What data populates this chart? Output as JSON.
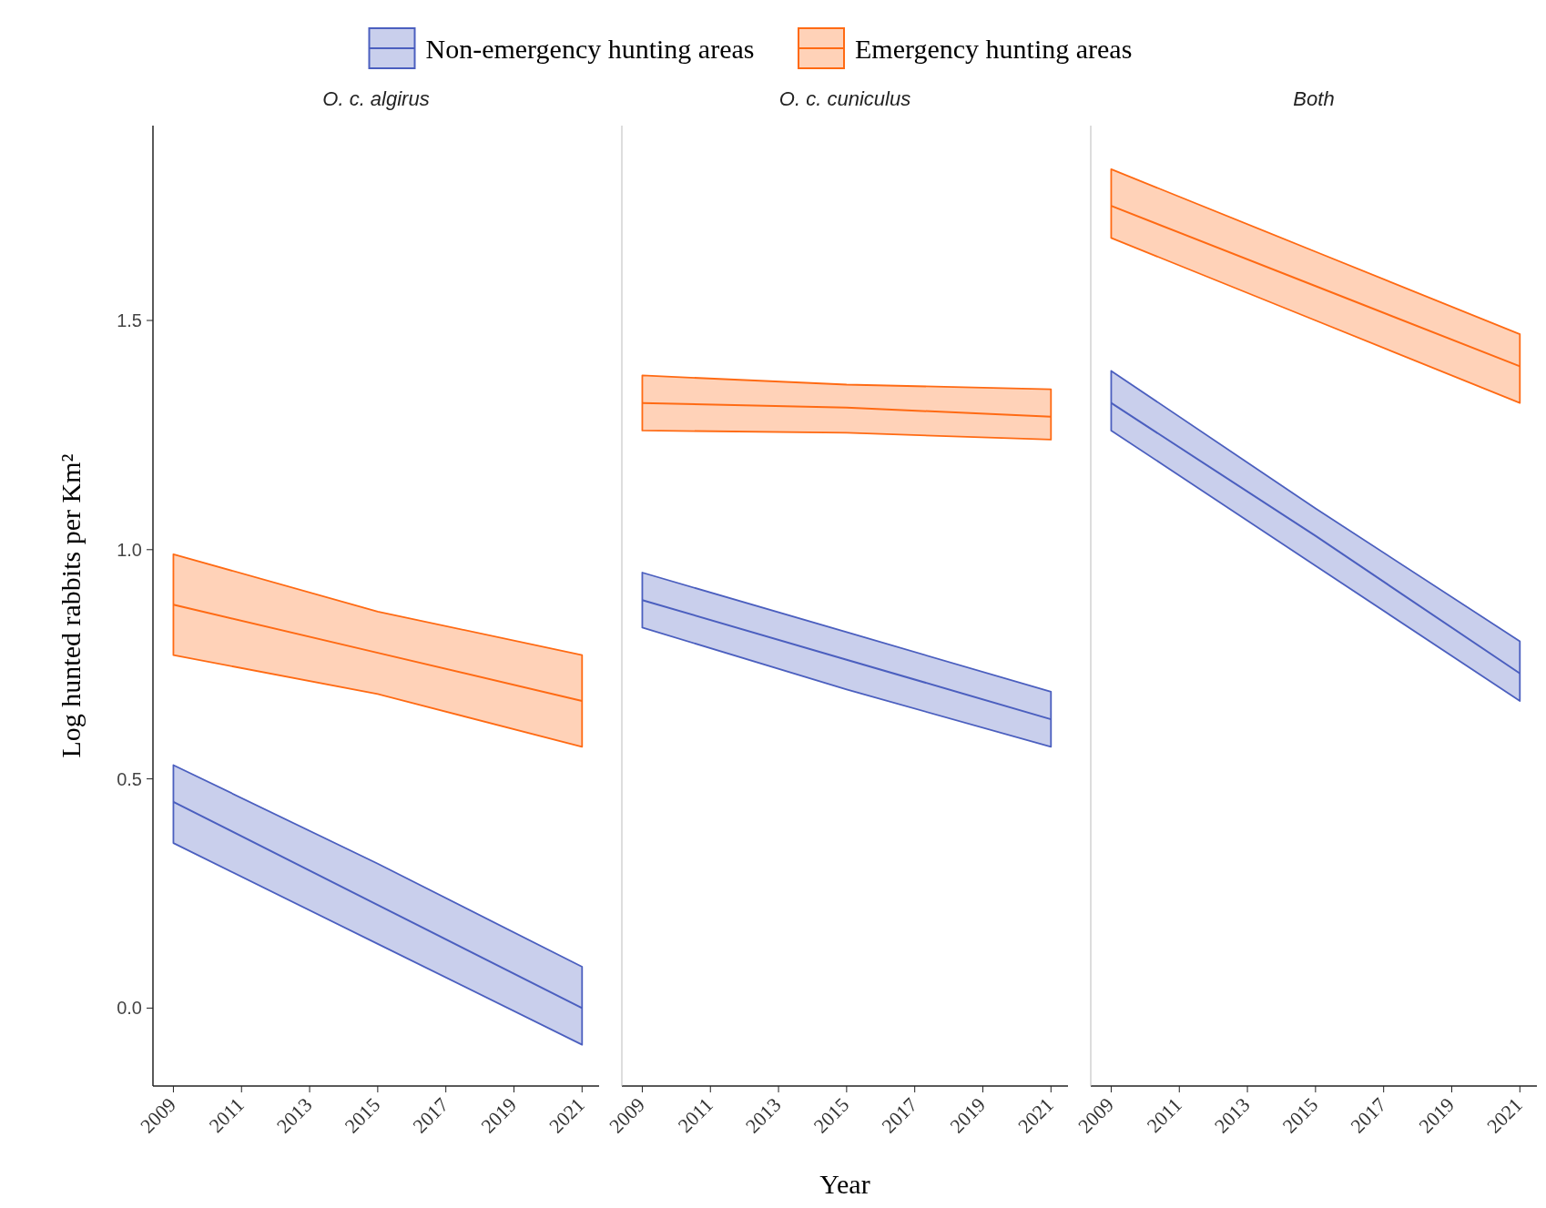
{
  "chart_data": [
    {
      "type": "line",
      "title": "O. c. algirus",
      "ylabel": "Log hunted rabbits per Km²",
      "legend": "top",
      "grid": false,
      "xlim": [
        2008.4,
        2021.5
      ],
      "xticks": [
        2009,
        2011,
        2013,
        2015,
        2017,
        2019,
        2021
      ],
      "ylim": [
        -0.17,
        1.925
      ],
      "yticks": [
        {
          "value": 0,
          "label": "0.0"
        },
        0.5,
        {
          "value": 1,
          "label": "1.0"
        },
        1.5
      ],
      "series": [
        {
          "name": "Non-emergency hunting areas",
          "color": "#4b5fbf",
          "x": [
            2009,
            2015,
            2021
          ],
          "values": [
            0.45,
            0.225,
            0.0
          ],
          "lower": [
            0.36,
            0.14,
            -0.08
          ],
          "upper": [
            0.53,
            0.315,
            0.09
          ]
        },
        {
          "name": "Emergency hunting areas",
          "color": "#ff6a13",
          "x": [
            2009,
            2015,
            2021
          ],
          "values": [
            0.88,
            0.775,
            0.67
          ],
          "lower": [
            0.77,
            0.685,
            0.57
          ],
          "upper": [
            0.99,
            0.865,
            0.77
          ]
        }
      ]
    },
    {
      "type": "line",
      "title": "O. c. cuniculus",
      "xlabel": "Year",
      "tick_labels": "x",
      "xlim": [
        2008.4,
        2021.5
      ],
      "xticks": [
        2009,
        2011,
        2013,
        2015,
        2017,
        2019,
        2021
      ],
      "ylim": [
        -0.17,
        1.925
      ],
      "series": [
        {
          "color": "#4b5fbf",
          "x": [
            2009,
            2015,
            2021
          ],
          "values": [
            0.89,
            0.76,
            0.63
          ],
          "lower": [
            0.83,
            0.695,
            0.57
          ],
          "upper": [
            0.95,
            0.82,
            0.69
          ]
        },
        {
          "color": "#ff6a13",
          "x": [
            2009,
            2015,
            2021
          ],
          "values": [
            1.32,
            1.31,
            1.29
          ],
          "lower": [
            1.26,
            1.255,
            1.24
          ],
          "upper": [
            1.38,
            1.36,
            1.35
          ]
        }
      ]
    },
    {
      "type": "line",
      "title": "Both",
      "tick_labels": "x",
      "xlim": [
        2008.4,
        2021.5
      ],
      "xticks": [
        2009,
        2011,
        2013,
        2015,
        2017,
        2019,
        2021
      ],
      "ylim": [
        -0.17,
        1.925
      ],
      "series": [
        {
          "color": "#4b5fbf",
          "x": [
            2009,
            2015,
            2021
          ],
          "values": [
            1.32,
            1.03,
            0.73
          ],
          "lower": [
            1.26,
            0.965,
            0.67
          ],
          "upper": [
            1.39,
            1.09,
            0.8
          ]
        },
        {
          "color": "#ff6a13",
          "x": [
            2009,
            2015,
            2021
          ],
          "values": [
            1.75,
            1.575,
            1.4
          ],
          "lower": [
            1.68,
            1.5,
            1.32
          ],
          "upper": [
            1.83,
            1.65,
            1.47
          ]
        }
      ]
    }
  ]
}
